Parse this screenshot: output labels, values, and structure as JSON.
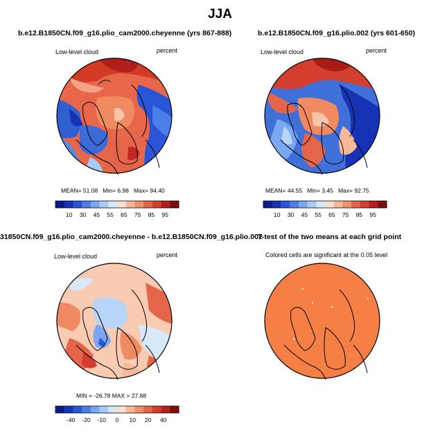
{
  "title": "JJA",
  "panels": [
    {
      "title": "b.e12.B1850CN.f09_g16.plio_cam2000.cheyenne (yrs 867-888)",
      "variable": "Low-level cloud",
      "units": "percent",
      "stats": {
        "mean_label": "MEAN=",
        "mean": "51.08",
        "min_label": "Min=",
        "min": "6.98",
        "max_label": "Max=",
        "max": "94.40"
      }
    },
    {
      "title": "b.e12.B1850CN.f09_g16.plio.002 (yrs 601-650)",
      "variable": "Low-level cloud",
      "units": "percent",
      "stats": {
        "mean_label": "MEAN=",
        "mean": "44.55",
        "min_label": "Min=",
        "min": "3.45",
        "max_label": "Max=",
        "max": "92.75"
      }
    },
    {
      "title": "31850CN.f09_g16.plio_cam2000.cheyenne - b.e12.B1850CN.f09_g16.plio.002",
      "variable": "Low-level cloud",
      "units": "percent",
      "stats_text": "MIN = -26.78  MAX = 27.88"
    },
    {
      "title": "T-test of the two means at each grid point",
      "subtitle": "Colored cells are significant at the 0.05 level"
    }
  ],
  "colorbars": {
    "absolute": {
      "colors": [
        "#0a1a8c",
        "#1533b4",
        "#2a55d6",
        "#4d7de8",
        "#7aa6f2",
        "#a9cbf8",
        "#d8e8fb",
        "#fbe0d0",
        "#f7b89a",
        "#f08f6c",
        "#e5654a",
        "#d33e2e",
        "#b4201b",
        "#7f0d0d"
      ],
      "labels": [
        "10",
        "30",
        "45",
        "55",
        "65",
        "75",
        "85",
        "95"
      ]
    },
    "difference": {
      "colors": [
        "#0a1a8c",
        "#1533b4",
        "#2a55d6",
        "#4d7de8",
        "#7aa6f2",
        "#a9cbf8",
        "#d8e8fb",
        "#fbe0d0",
        "#f7b89a",
        "#f08f6c",
        "#e5654a",
        "#d33e2e",
        "#b4201b",
        "#7f0d0d"
      ],
      "labels": [
        "-40",
        "-20",
        "-10",
        "0",
        "10",
        "20",
        "40"
      ]
    }
  },
  "map_colors": {
    "ocean_red": "#e2523a",
    "arctic_orange": "#f08a60",
    "land_blue": "#3f6fd8",
    "light_blue": "#b8d4f6",
    "light_red": "#f9cbb3",
    "ttest_fill": "#f57f45"
  }
}
